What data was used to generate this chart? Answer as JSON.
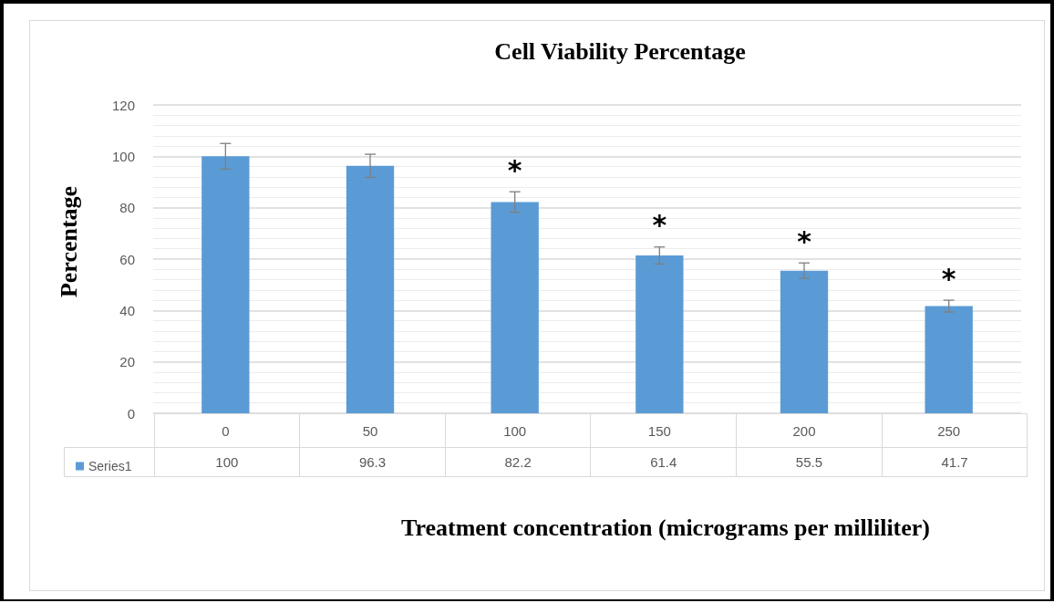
{
  "chart_data": {
    "type": "bar",
    "title": "Cell Viability Percentage",
    "xlabel": "Treatment concentration (micrograms per milliliter)",
    "ylabel": "Percentage",
    "categories": [
      "0",
      "50",
      "100",
      "150",
      "200",
      "250"
    ],
    "series": [
      {
        "name": "Series1",
        "color": "#5b9bd5",
        "values": [
          100,
          96.3,
          82.2,
          61.4,
          55.5,
          41.7
        ],
        "errors": [
          5,
          4.5,
          4,
          3.3,
          3,
          2.3
        ]
      }
    ],
    "ylim": [
      0,
      120
    ],
    "yticks": [
      0,
      20,
      40,
      60,
      80,
      100,
      120
    ],
    "grid": true,
    "legend": "bottom left",
    "data_labels": true,
    "annotations": [
      {
        "text": "*",
        "x": "100",
        "y": 82.2
      },
      {
        "text": "*",
        "x": "150",
        "y": 61.4
      },
      {
        "text": "*",
        "x": "200",
        "y": 55.5
      },
      {
        "text": "*",
        "x": "250",
        "y": 41.7
      }
    ]
  }
}
